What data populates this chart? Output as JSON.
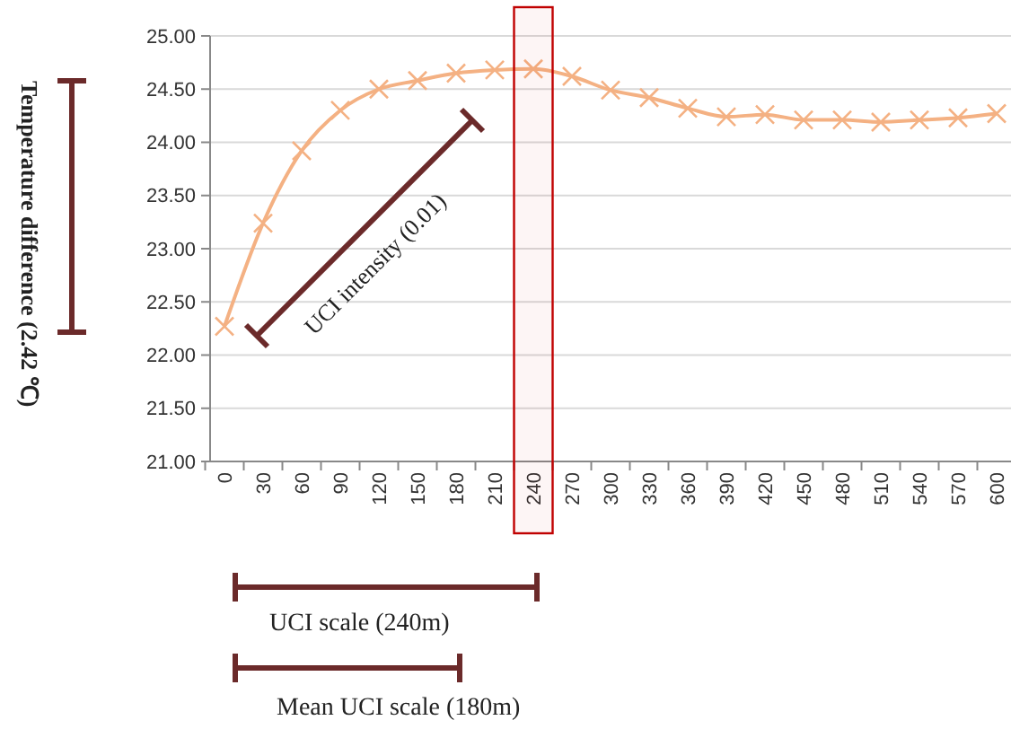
{
  "chart_data": {
    "type": "line",
    "ylabel": "Temperature difference (2.42 ℃)",
    "categories": [
      "0",
      "30",
      "60",
      "90",
      "120",
      "150",
      "180",
      "210",
      "240",
      "270",
      "300",
      "330",
      "360",
      "390",
      "420",
      "450",
      "480",
      "510",
      "540",
      "570",
      "600"
    ],
    "series": [
      {
        "color": "#f4b183",
        "values": [
          22.27,
          23.24,
          23.92,
          24.3,
          24.5,
          24.58,
          24.65,
          24.68,
          24.69,
          24.62,
          24.49,
          24.42,
          24.32,
          24.24,
          24.26,
          24.21,
          24.21,
          24.19,
          24.21,
          24.23,
          24.27
        ]
      }
    ],
    "ylim": [
      21,
      25
    ],
    "yticks": [
      {
        "value": 21,
        "label": "21.00"
      },
      {
        "value": 21.5,
        "label": "21.50"
      },
      {
        "value": 22,
        "label": "22.00"
      },
      {
        "value": 22.5,
        "label": "22.50"
      },
      {
        "value": 23,
        "label": "23.00"
      },
      {
        "value": 23.5,
        "label": "23.50"
      },
      {
        "value": 24,
        "label": "24.00"
      },
      {
        "value": 24.5,
        "label": "24.50"
      },
      {
        "value": 25,
        "label": "25.00"
      }
    ],
    "bands": [
      {
        "axis": "x",
        "from": "240",
        "to": "240",
        "color": "#c00000"
      }
    ],
    "grid": "y",
    "marker": "cross",
    "line_style": "solid",
    "annotations": [
      "UCI intensity (0.01)",
      "UCI scale (240m)",
      "Mean UCI scale (180m)"
    ]
  }
}
